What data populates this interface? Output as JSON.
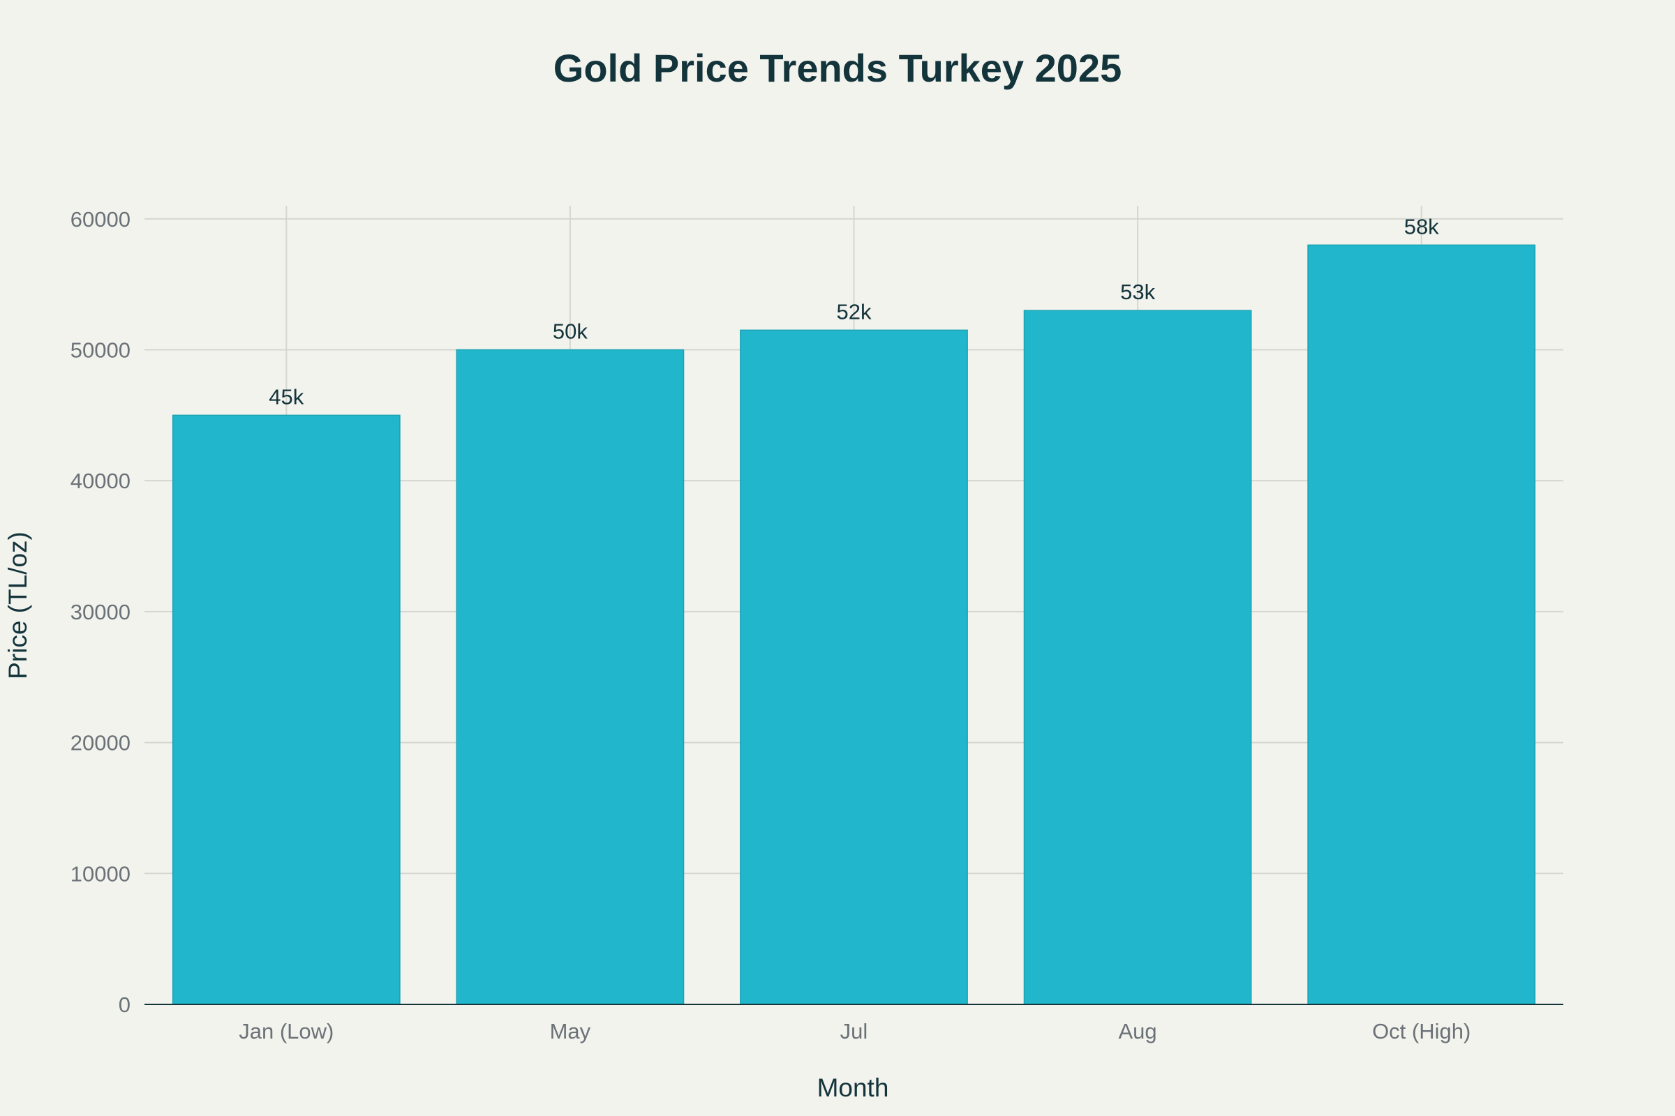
{
  "chart_data": {
    "type": "bar",
    "title": "Gold Price Trends Turkey 2025",
    "xlabel": "Month",
    "ylabel": "Price (TL/oz)",
    "categories": [
      "Jan (Low)",
      "May",
      "Jul",
      "Aug",
      "Oct (High)"
    ],
    "values": [
      45000,
      50000,
      51500,
      53000,
      58000
    ],
    "data_labels": [
      "45k",
      "50k",
      "52k",
      "53k",
      "58k"
    ],
    "ylim": [
      0,
      61000
    ],
    "yticks": [
      0,
      10000,
      20000,
      30000,
      40000,
      50000,
      60000
    ],
    "grid": true,
    "legend": "none",
    "colors": {
      "bar": "#21b6cb",
      "background": "#f3f3ee",
      "text": "#13343b",
      "tick_text": "#6b7277",
      "grid": "#d6d6d1"
    }
  }
}
